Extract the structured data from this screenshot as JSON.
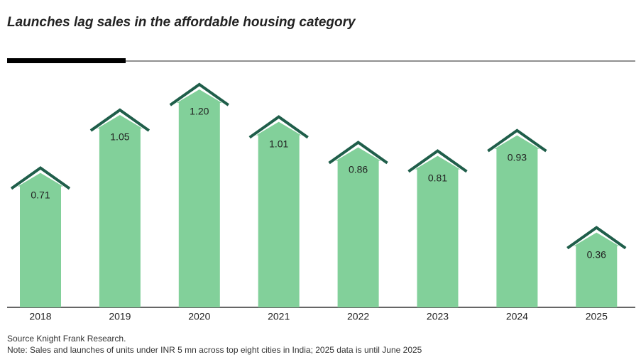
{
  "chart_data": {
    "type": "house-bar",
    "title": "Launches lag sales in the affordable housing category",
    "categories": [
      "2018",
      "2019",
      "2020",
      "2021",
      "2022",
      "2023",
      "2024",
      "2025"
    ],
    "values": [
      0.71,
      1.05,
      1.2,
      1.01,
      0.86,
      0.81,
      0.93,
      0.36
    ],
    "value_labels": [
      "0.71",
      "1.05",
      "1.20",
      "1.01",
      "0.86",
      "0.81",
      "0.93",
      "0.36"
    ],
    "color": "#82d09a",
    "roof_color": "#1f5e4a",
    "source": "Source Knight Frank Research.",
    "note": "Note: Sales and launches of units under INR 5 mn across top eight cities in India; 2025 data is until June 2025"
  }
}
